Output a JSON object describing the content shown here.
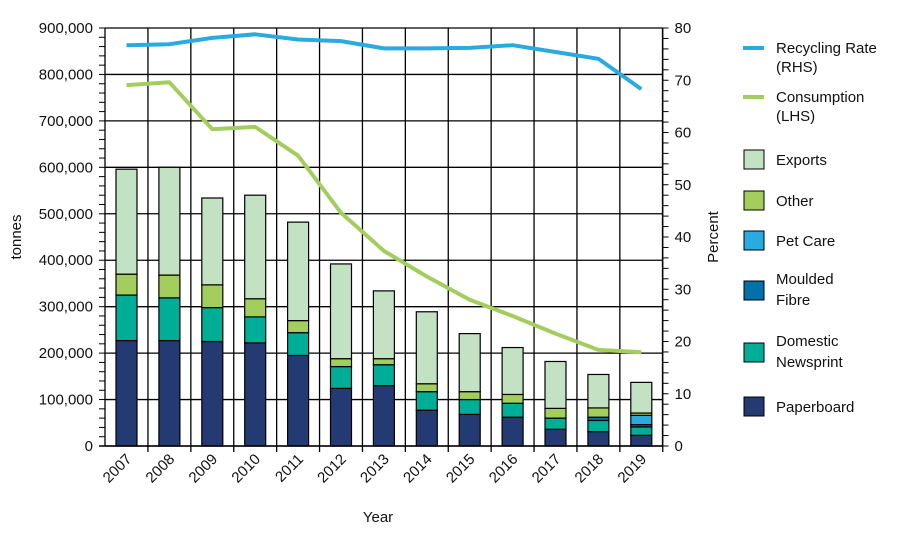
{
  "chart_data": {
    "type": "bar",
    "stacked": true,
    "categories": [
      "2007",
      "2008",
      "2009",
      "2010",
      "2011",
      "2012",
      "2013",
      "2014",
      "2015",
      "2016",
      "2017",
      "2018",
      "2019"
    ],
    "xlabel": "Year",
    "ylabel": "tonnes",
    "ylabel_right": "Percent",
    "ylim": [
      0,
      900000
    ],
    "ylim_right": [
      0,
      80
    ],
    "yticks": [
      "0",
      "100,000",
      "200,000",
      "300,000",
      "400,000",
      "500,000",
      "600,000",
      "700,000",
      "800,000",
      "900,000"
    ],
    "yticks_right": [
      "0",
      "10",
      "20",
      "30",
      "40",
      "50",
      "60",
      "70",
      "80"
    ],
    "grid": true,
    "legend_position": "right",
    "series": [
      {
        "name": "Paperboard",
        "color": "#243a73",
        "values": [
          227000,
          227000,
          225000,
          222000,
          195000,
          124000,
          130000,
          77000,
          68000,
          62000,
          36000,
          31000,
          23000
        ]
      },
      {
        "name": "Domestic Newsprint",
        "color": "#00ae98",
        "values": [
          98000,
          92000,
          73000,
          56000,
          49000,
          47000,
          45000,
          40000,
          32000,
          30000,
          24000,
          24000,
          18000
        ]
      },
      {
        "name": "Moulded Fibre",
        "color": "#0071a9",
        "values": [
          0,
          0,
          0,
          0,
          0,
          0,
          0,
          0,
          0,
          0,
          0,
          7000,
          5000
        ]
      },
      {
        "name": "Pet Care",
        "color": "#29abe2",
        "values": [
          0,
          0,
          0,
          0,
          0,
          0,
          0,
          0,
          0,
          0,
          0,
          0,
          20000
        ]
      },
      {
        "name": "Other",
        "color": "#a3ce5e",
        "values": [
          45000,
          49000,
          49000,
          39000,
          26000,
          17000,
          13000,
          17000,
          17000,
          19000,
          21000,
          20000,
          5000
        ]
      },
      {
        "name": "Exports",
        "color": "#c3e2c3",
        "values": [
          226000,
          232000,
          187000,
          223000,
          212000,
          204000,
          146000,
          155000,
          125000,
          101000,
          101000,
          72000,
          66000
        ]
      }
    ],
    "lines": [
      {
        "name": "Recycling Rate (RHS)",
        "label_lines": [
          "Recycling Rate",
          "(RHS)"
        ],
        "axis": "right",
        "color": "#29abe2",
        "values": [
          76.7,
          76.9,
          78.1,
          78.8,
          77.8,
          77.5,
          76.1,
          76.1,
          76.2,
          76.7,
          75.4,
          74.1,
          68.3
        ]
      },
      {
        "name": "Consumption (LHS)",
        "label_lines": [
          "Consumption",
          "(LHS)"
        ],
        "axis": "left",
        "color": "#a3ce5e",
        "values": [
          777000,
          783000,
          682000,
          687000,
          625000,
          502000,
          420000,
          365000,
          315000,
          280000,
          242000,
          207000,
          202000
        ]
      }
    ],
    "legend_order": [
      "Exports",
      "Other",
      "Pet Care",
      "Moulded Fibre",
      "Domestic Newsprint",
      "Paperboard"
    ]
  }
}
